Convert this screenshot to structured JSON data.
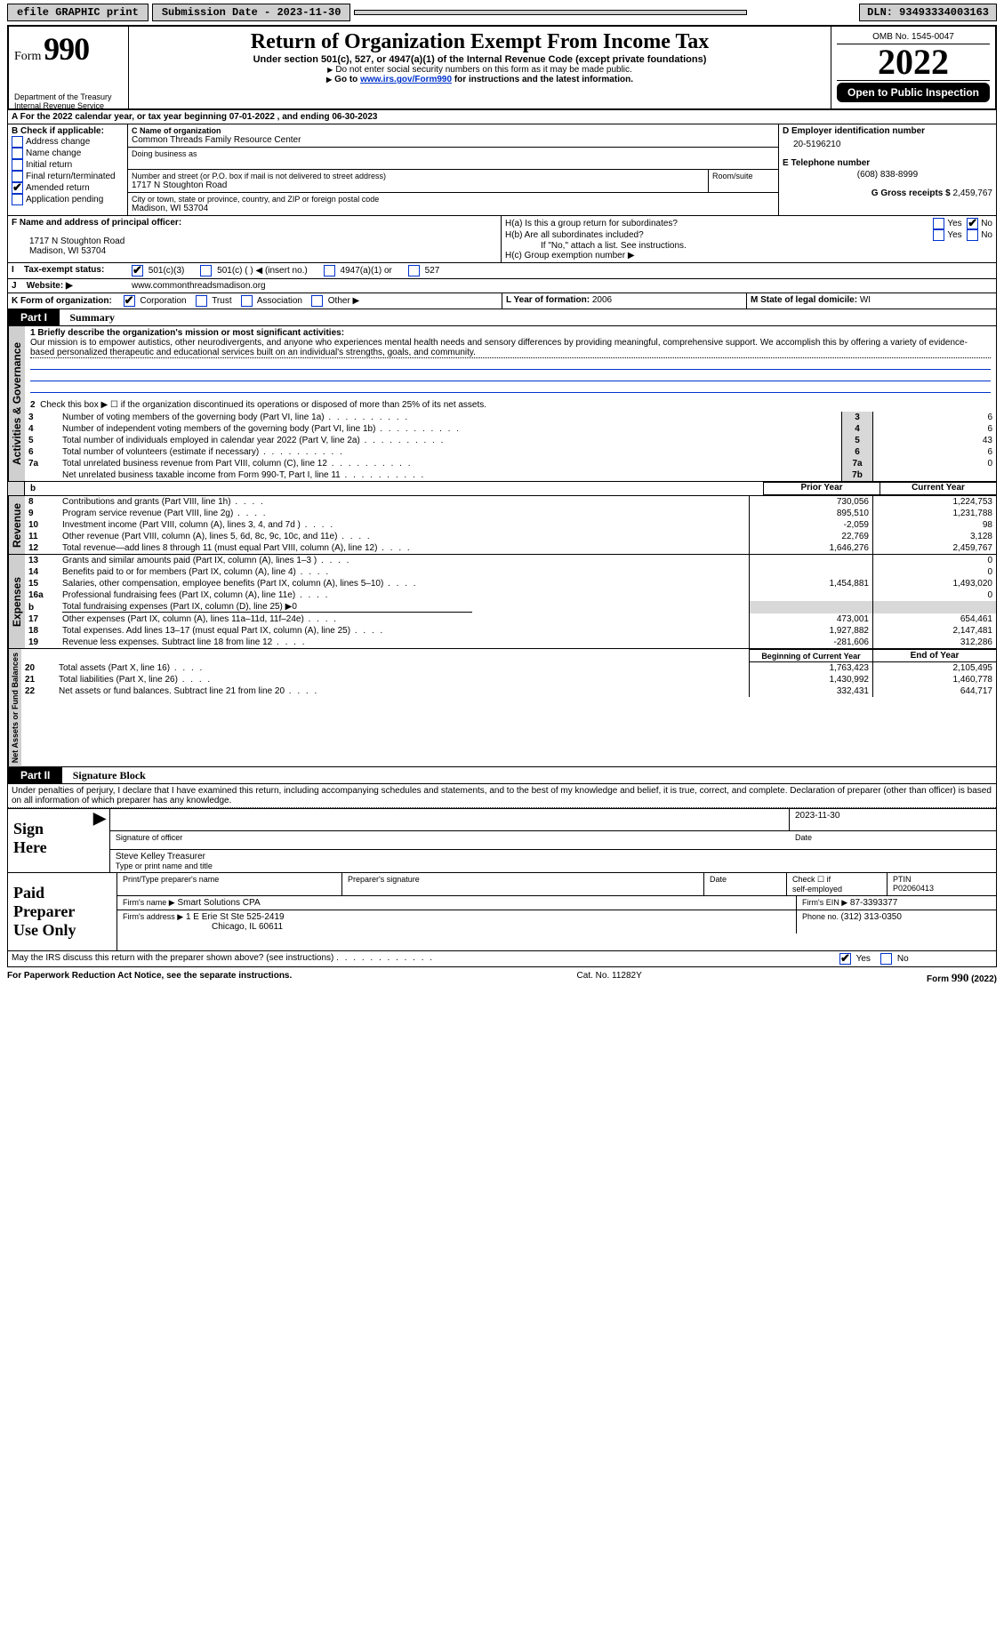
{
  "colors": {
    "black": "#000000",
    "white": "#ffffff",
    "grey_btn": "#cfcfcf",
    "grey_cell": "#d8d8d8",
    "link": "#0033cc"
  },
  "topbar": {
    "efile": "efile GRAPHIC print",
    "submission": "Submission Date - 2023-11-30",
    "dln": "DLN: 93493334003163"
  },
  "header": {
    "form_pre": "Form",
    "form_num": "990",
    "dept1": "Department of the Treasury",
    "dept2": "Internal Revenue Service",
    "title": "Return of Organization Exempt From Income Tax",
    "sub1": "Under section 501(c), 527, or 4947(a)(1) of the Internal Revenue Code (except private foundations)",
    "sub2": "Do not enter social security numbers on this form as it may be made public.",
    "sub3_pre": "Go to ",
    "sub3_link": "www.irs.gov/Form990",
    "sub3_post": " for instructions and the latest information.",
    "omb": "OMB No. 1545-0047",
    "year": "2022",
    "open": "Open to Public Inspection"
  },
  "blockA": {
    "A_line": "For the 2022 calendar year, or tax year beginning 07-01-2022    , and ending 06-30-2023",
    "B_head": "B Check if applicable:",
    "B_opts": [
      "Address change",
      "Name change",
      "Initial return",
      "Final return/terminated",
      "Amended return",
      "Application pending"
    ],
    "B_checked_idx": 4,
    "C_label": "C Name of organization",
    "C_name": "Common Threads Family Resource Center",
    "dba_label": "Doing business as",
    "addr_label": "Number and street (or P.O. box if mail is not delivered to street address)",
    "room": "Room/suite",
    "addr": "1717 N Stoughton Road",
    "city_label": "City or town, state or province, country, and ZIP or foreign postal code",
    "city": "Madison, WI  53704",
    "D_label": "D Employer identification number",
    "D_val": "20-5196210",
    "E_label": "E Telephone number",
    "E_val": "(608) 838-8999",
    "G_label": "G Gross receipts $ ",
    "G_val": "2,459,767"
  },
  "blockF": {
    "F_label": "F  Name and address of principal officer:",
    "F_addr1": "1717 N Stoughton Road",
    "F_addr2": "Madison, WI  53704",
    "Ha": "H(a)  Is this a group return for subordinates?",
    "Hb": "H(b)  Are all subordinates included?",
    "Hb2": "If \"No,\" attach a list. See instructions.",
    "Hc": "H(c)  Group exemption number ▶",
    "yes": "Yes",
    "no": "No"
  },
  "blockI": {
    "I": "Tax-exempt status:",
    "opts": [
      "501(c)(3)",
      "501(c) (   ) ◀ (insert no.)",
      "4947(a)(1) or",
      "527"
    ],
    "J": "Website: ▶",
    "J_val": "  www.commonthreadsmadison.org"
  },
  "blockK": {
    "K": "K Form of organization:",
    "opts": [
      "Corporation",
      "Trust",
      "Association",
      "Other ▶"
    ],
    "L": "L Year of formation: ",
    "L_val": "2006",
    "M": "M State of legal domicile: ",
    "M_val": "WI"
  },
  "part1": {
    "hdr_lbl": "Part I",
    "hdr_txt": "Summary",
    "gov": {
      "label": "Activities & Governance",
      "l1": "1  Briefly describe the organization's mission or most significant activities:",
      "mission": "Our mission is to empower autistics, other neurodivergents, and anyone who experiences mental health needs and sensory differences by providing meaningful, comprehensive support. We accomplish this by offering a variety of evidence-based personalized therapeutic and educational services built on an individual's strengths, goals, and community.",
      "l2": "Check this box ▶ ☐  if the organization discontinued its operations or disposed of more than 25% of its net assets.",
      "rows": [
        {
          "n": "3",
          "t": "Number of voting members of the governing body (Part VI, line 1a)",
          "k": "3",
          "v": "6"
        },
        {
          "n": "4",
          "t": "Number of independent voting members of the governing body (Part VI, line 1b)",
          "k": "4",
          "v": "6"
        },
        {
          "n": "5",
          "t": "Total number of individuals employed in calendar year 2022 (Part V, line 2a)",
          "k": "5",
          "v": "43"
        },
        {
          "n": "6",
          "t": "Total number of volunteers (estimate if necessary)",
          "k": "6",
          "v": "6"
        },
        {
          "n": "7a",
          "t": "Total unrelated business revenue from Part VIII, column (C), line 12",
          "k": "7a",
          "v": "0"
        },
        {
          "n": "",
          "t": "Net unrelated business taxable income from Form 990-T, Part I, line 11",
          "k": "7b",
          "v": ""
        }
      ]
    },
    "cols": {
      "prior": "Prior Year",
      "current": "Current Year"
    },
    "rev": {
      "label": "Revenue",
      "rows": [
        {
          "n": "8",
          "t": "Contributions and grants (Part VIII, line 1h)",
          "p": "730,056",
          "c": "1,224,753"
        },
        {
          "n": "9",
          "t": "Program service revenue (Part VIII, line 2g)",
          "p": "895,510",
          "c": "1,231,788"
        },
        {
          "n": "10",
          "t": "Investment income (Part VIII, column (A), lines 3, 4, and 7d )",
          "p": "-2,059",
          "c": "98"
        },
        {
          "n": "11",
          "t": "Other revenue (Part VIII, column (A), lines 5, 6d, 8c, 9c, 10c, and 11e)",
          "p": "22,769",
          "c": "3,128"
        },
        {
          "n": "12",
          "t": "Total revenue—add lines 8 through 11 (must equal Part VIII, column (A), line 12)",
          "p": "1,646,276",
          "c": "2,459,767"
        }
      ]
    },
    "exp": {
      "label": "Expenses",
      "rows": [
        {
          "n": "13",
          "t": "Grants and similar amounts paid (Part IX, column (A), lines 1–3 )",
          "p": "",
          "c": "0"
        },
        {
          "n": "14",
          "t": "Benefits paid to or for members (Part IX, column (A), line 4)",
          "p": "",
          "c": "0"
        },
        {
          "n": "15",
          "t": "Salaries, other compensation, employee benefits (Part IX, column (A), lines 5–10)",
          "p": "1,454,881",
          "c": "1,493,020"
        },
        {
          "n": "16a",
          "t": "Professional fundraising fees (Part IX, column (A), line 11e)",
          "p": "",
          "c": "0"
        },
        {
          "n": "b",
          "t": "Total fundraising expenses (Part IX, column (D), line 25) ▶0",
          "p": "GREY",
          "c": "GREY"
        },
        {
          "n": "17",
          "t": "Other expenses (Part IX, column (A), lines 11a–11d, 11f–24e)",
          "p": "473,001",
          "c": "654,461"
        },
        {
          "n": "18",
          "t": "Total expenses. Add lines 13–17 (must equal Part IX, column (A), line 25)",
          "p": "1,927,882",
          "c": "2,147,481"
        },
        {
          "n": "19",
          "t": "Revenue less expenses. Subtract line 18 from line 12",
          "p": "-281,606",
          "c": "312,286"
        }
      ]
    },
    "net": {
      "label": "Net Assets or Fund Balances",
      "hdr_p": "Beginning of Current Year",
      "hdr_c": "End of Year",
      "rows": [
        {
          "n": "20",
          "t": "Total assets (Part X, line 16)",
          "p": "1,763,423",
          "c": "2,105,495"
        },
        {
          "n": "21",
          "t": "Total liabilities (Part X, line 26)",
          "p": "1,430,992",
          "c": "1,460,778"
        },
        {
          "n": "22",
          "t": "Net assets or fund balances. Subtract line 21 from line 20",
          "p": "332,431",
          "c": "644,717"
        }
      ]
    }
  },
  "part2": {
    "hdr_lbl": "Part II",
    "hdr_txt": "Signature Block",
    "decl": "Under penalties of perjury, I declare that I have examined this return, including accompanying schedules and statements, and to the best of my knowledge and belief, it is true, correct, and complete. Declaration of preparer (other than officer) is based on all information of which preparer has any knowledge.",
    "sign": {
      "lbl1": "Sign",
      "lbl2": "Here",
      "sig_of": "Signature of officer",
      "date": "Date",
      "date_val": "2023-11-30",
      "name": "Steve Kelley  Treasurer",
      "name_lbl": "Type or print name and title"
    },
    "paid": {
      "lbl1": "Paid",
      "lbl2": "Preparer",
      "lbl3": "Use Only",
      "c1": "Print/Type preparer's name",
      "c2": "Preparer's signature",
      "c3": "Date",
      "c4a": "Check ☐ if",
      "c4b": "self-employed",
      "c5": "PTIN",
      "ptin": "P02060413",
      "firm_name_lbl": "Firm's name      ▶",
      "firm_name": "Smart Solutions CPA",
      "firm_ein_lbl": "Firm's EIN ▶",
      "firm_ein": "87-3393377",
      "firm_addr_lbl": "Firm's address ▶",
      "firm_addr1": "1 E Erie St Ste 525-2419",
      "firm_addr2": "Chicago, IL  60611",
      "phone_lbl": "Phone no. ",
      "phone": "(312) 313-0350"
    },
    "may": "May the IRS discuss this return with the preparer shown above? (see instructions)"
  },
  "footer": {
    "l": "For Paperwork Reduction Act Notice, see the separate instructions.",
    "c": "Cat. No. 11282Y",
    "r": "Form 990 (2022)"
  }
}
